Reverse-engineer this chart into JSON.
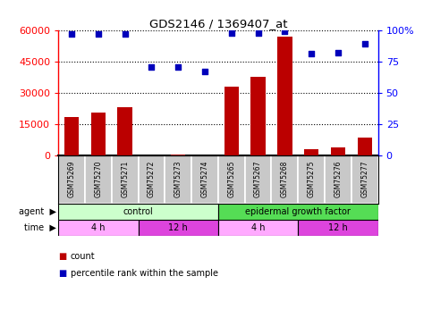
{
  "title": "GDS2146 / 1369407_at",
  "samples": [
    "GSM75269",
    "GSM75270",
    "GSM75271",
    "GSM75272",
    "GSM75273",
    "GSM75274",
    "GSM75265",
    "GSM75267",
    "GSM75268",
    "GSM75275",
    "GSM75276",
    "GSM75277"
  ],
  "counts": [
    18500,
    20500,
    23000,
    350,
    550,
    300,
    33000,
    37500,
    57000,
    3200,
    3800,
    8500
  ],
  "percentile": [
    97,
    97,
    97,
    71,
    71,
    67,
    98,
    98,
    99,
    81,
    82,
    89
  ],
  "ylim_left": [
    0,
    60000
  ],
  "ylim_right": [
    0,
    100
  ],
  "yticks_left": [
    0,
    15000,
    30000,
    45000,
    60000
  ],
  "yticks_right": [
    0,
    25,
    50,
    75,
    100
  ],
  "bar_color": "#bb0000",
  "dot_color": "#0000bb",
  "agent_control_color": "#ccffcc",
  "agent_egf_color": "#55dd55",
  "time_4h_color": "#ffaaff",
  "time_12h_color": "#dd44dd",
  "legend_count_color": "#bb0000",
  "legend_dot_color": "#0000bb",
  "background_color": "#ffffff",
  "plot_bg_color": "#ffffff",
  "sample_box_color": "#c8c8c8",
  "time_segments": [
    {
      "label": "4 h",
      "start": 0,
      "end": 3
    },
    {
      "label": "12 h",
      "start": 3,
      "end": 6
    },
    {
      "label": "4 h",
      "start": 6,
      "end": 9
    },
    {
      "label": "12 h",
      "start": 9,
      "end": 12
    }
  ],
  "agent_segments": [
    {
      "label": "control",
      "start": 0,
      "end": 6
    },
    {
      "label": "epidermal growth factor",
      "start": 6,
      "end": 12
    }
  ]
}
